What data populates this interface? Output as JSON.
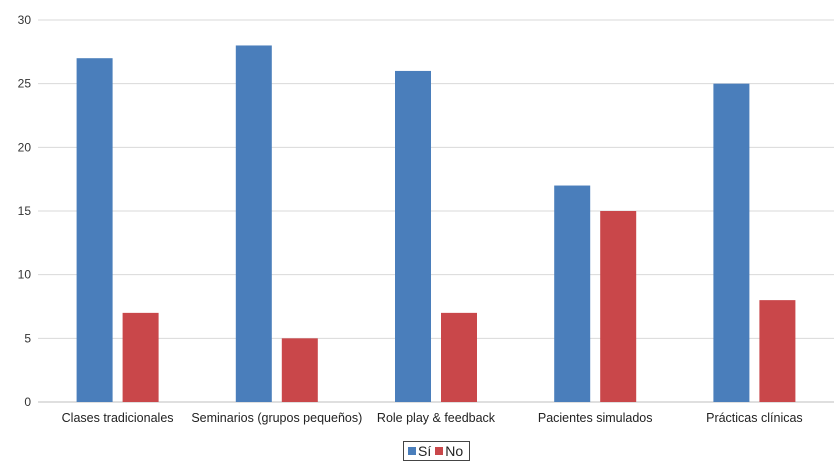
{
  "chart_data": {
    "type": "bar",
    "categories": [
      "Clases tradicionales",
      "Seminarios (grupos pequeños)",
      "Role play & feedback",
      "Pacientes simulados",
      "Prácticas clínicas"
    ],
    "series": [
      {
        "name": "Sí",
        "values": [
          27,
          28,
          26,
          17,
          25
        ],
        "color": "#4a7ebb"
      },
      {
        "name": "No",
        "values": [
          7,
          5,
          7,
          15,
          8
        ],
        "color": "#c9474a"
      }
    ],
    "ylim": [
      0,
      30
    ],
    "yticks": [
      0,
      5,
      10,
      15,
      20,
      25,
      30
    ],
    "grid": true,
    "legend_position": "bottom"
  }
}
